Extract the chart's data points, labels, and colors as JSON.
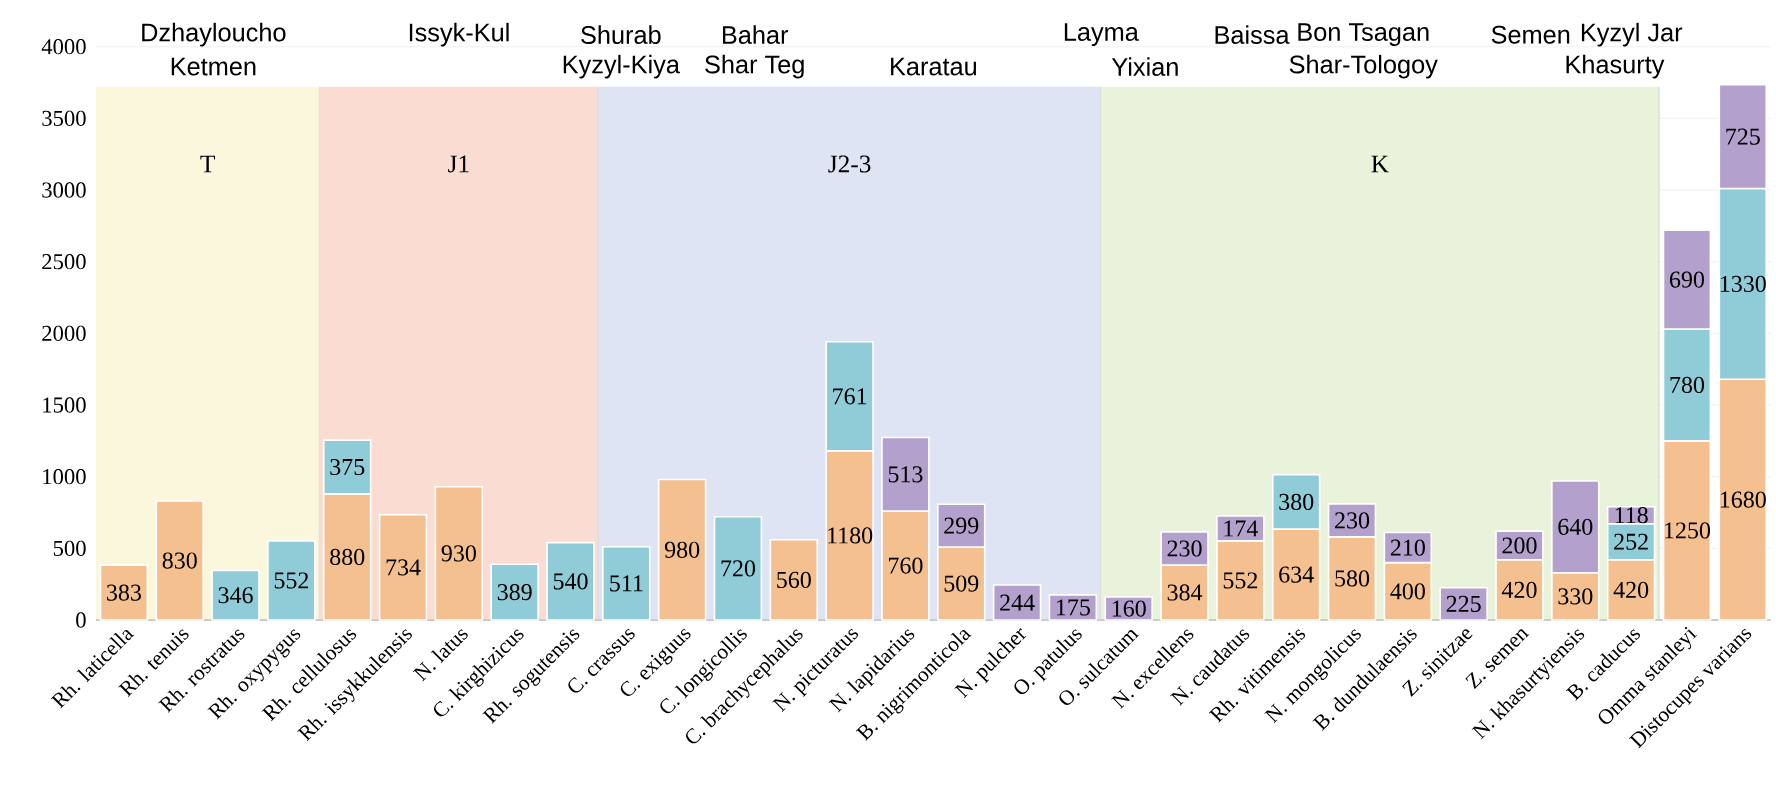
{
  "chart_data": {
    "type": "bar",
    "stacked": true,
    "data_labels": true,
    "grid": "y",
    "ylim": [
      0,
      4000
    ],
    "yticks": [
      0,
      500,
      1000,
      1500,
      2000,
      2500,
      3000,
      3500,
      4000
    ],
    "categories": [
      "Rh. laticella",
      "Rh. tenuis",
      "Rh. rostratus",
      "Rh. oxypygus",
      "Rh. cellulosus",
      "Rh. issykkulensis",
      "N. latus",
      "C. kirghizicus",
      "Rh. sogutensis",
      "C. crassus",
      "C. exiguus",
      "C. longicollis",
      "C. brachycephalus",
      "N. picturatus",
      "N. lapidarius",
      "B. nigrimonticola",
      "N. pulcher",
      "O. patulus",
      "O. sulcatum",
      "N. excellens",
      "N. caudatus",
      "Rh. vitimensis",
      "N. mongolicus",
      "B. dundulaensis",
      "Z. sinitzae",
      "Z. semen",
      "N. khasurtyiensis",
      "B. caducus",
      "Omma stanleyi",
      "Distocupes varians"
    ],
    "series": [
      {
        "color": "#f5c08f",
        "values": [
          383,
          830,
          null,
          null,
          880,
          734,
          930,
          null,
          null,
          null,
          980,
          null,
          560,
          1180,
          760,
          509,
          null,
          null,
          null,
          384,
          552,
          634,
          580,
          400,
          null,
          420,
          330,
          420,
          1250,
          1680
        ]
      },
      {
        "color": "#8fccd8",
        "values": [
          null,
          null,
          346,
          552,
          375,
          null,
          null,
          389,
          540,
          511,
          null,
          720,
          null,
          761,
          null,
          null,
          null,
          null,
          null,
          null,
          null,
          380,
          null,
          null,
          null,
          null,
          null,
          252,
          780,
          1330
        ]
      },
      {
        "color": "#b3a0cc",
        "values": [
          null,
          null,
          null,
          null,
          null,
          null,
          null,
          null,
          null,
          null,
          null,
          null,
          null,
          null,
          513,
          299,
          244,
          175,
          160,
          230,
          174,
          null,
          230,
          210,
          225,
          200,
          640,
          118,
          690,
          725
        ]
      }
    ],
    "bands": [
      {
        "axis": "x",
        "from": "Rh. laticella",
        "to": "Rh. oxypygus",
        "label": "T",
        "color": "#fbf7dc"
      },
      {
        "axis": "x",
        "from": "Rh. cellulosus",
        "to": "Rh. sogutensis",
        "label": "J1",
        "color": "#fbdcd3"
      },
      {
        "axis": "x",
        "from": "C. crassus",
        "to": "O. patulus",
        "label": "J2-3",
        "color": "#dfe4f4"
      },
      {
        "axis": "x",
        "from": "O. sulcatum",
        "to": "B. caducus",
        "label": "K",
        "color": "#e9f2da"
      }
    ],
    "annotations": [
      "Dzhayloucho",
      "Ketmen",
      "Issyk-Kul",
      "Shurab",
      "Kyzyl-Kiya",
      "Bahar",
      "Shar Teg",
      "Karatau",
      "Layma",
      "Yixian",
      "Baissa",
      "Bon Tsagan",
      "Shar-Tologoy",
      "Semen",
      "Kyzyl Jar",
      "Khasurty"
    ]
  }
}
